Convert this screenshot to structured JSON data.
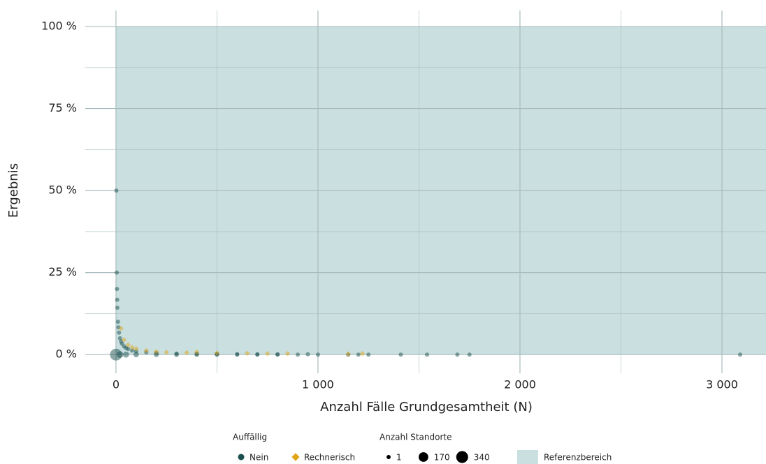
{
  "chart_data": {
    "type": "scatter",
    "x_label": "Anzahl Fälle Grundgesamtheit (N)",
    "y_label": "Ergebnis",
    "xlim": [
      -152,
      3218
    ],
    "ylim": [
      -5.7,
      104.9
    ],
    "xticks": [
      0,
      {
        "value": 1000,
        "label": "1 000"
      },
      {
        "value": 2000,
        "label": "2 000"
      },
      {
        "value": 3000,
        "label": "3 000"
      }
    ],
    "yticks": [
      {
        "value": 0,
        "label": "0 %"
      },
      {
        "value": 25,
        "label": "25 %"
      },
      {
        "value": 50,
        "label": "50 %"
      },
      {
        "value": 75,
        "label": "75 %"
      },
      {
        "value": 100,
        "label": "100 %"
      }
    ],
    "grid": true,
    "reference_range": [
      0,
      100
    ],
    "reference_label": "Referenzbereich",
    "reference_color": "#c9dfe0",
    "color_legend_title": "Auffällig",
    "size_legend_title": "Anzahl Standorte",
    "size_legend": [
      1,
      170,
      340
    ],
    "series": [
      {
        "name": "Nein",
        "color": "#1b4f4f",
        "marker": "circle",
        "x": [
          0,
          2,
          4,
          5,
          6,
          7,
          10,
          12,
          15,
          20,
          25,
          30,
          40,
          50,
          60,
          80,
          100,
          150,
          200,
          300,
          400,
          500,
          600,
          700,
          800,
          950,
          20,
          50,
          100,
          200,
          300,
          400,
          500,
          600,
          700,
          800,
          900,
          1000,
          1150,
          1200,
          1250,
          1410,
          1540,
          1690,
          1750,
          3090
        ],
        "values": [
          0,
          50,
          25,
          20,
          16.7,
          14.3,
          10,
          8.3,
          6.7,
          5,
          4,
          3.3,
          2.5,
          2,
          1.7,
          1.25,
          1,
          0.7,
          0.5,
          0.3,
          0.25,
          0.2,
          0.15,
          0.1,
          0.1,
          0.1,
          0,
          0,
          0,
          0,
          0,
          0,
          0,
          0,
          0,
          0,
          0,
          0,
          0,
          0,
          0,
          0,
          0,
          0,
          0,
          0
        ],
        "sizes": [
          340,
          1,
          1,
          1,
          1,
          1,
          1,
          1,
          1,
          1,
          1,
          1,
          1,
          1,
          1,
          1,
          1,
          1,
          1,
          1,
          1,
          1,
          1,
          1,
          1,
          1,
          40,
          20,
          10,
          5,
          3,
          2,
          2,
          1,
          1,
          1,
          1,
          1,
          1,
          1,
          1,
          1,
          1,
          1,
          1,
          1
        ]
      },
      {
        "name": "Rechnerisch",
        "color": "#e0a516",
        "marker": "diamond",
        "x": [
          25,
          40,
          60,
          80,
          100,
          150,
          200,
          250,
          350,
          400,
          500,
          650,
          750,
          850,
          1150,
          1220
        ],
        "values": [
          8,
          4.5,
          3,
          2.2,
          1.8,
          1.2,
          0.9,
          0.7,
          0.6,
          0.8,
          0.5,
          0.4,
          0.3,
          0.3,
          0.2,
          0.3
        ],
        "sizes": [
          1,
          1,
          1,
          1,
          1,
          1,
          1,
          1,
          1,
          1,
          1,
          1,
          1,
          1,
          1,
          1
        ]
      }
    ]
  }
}
